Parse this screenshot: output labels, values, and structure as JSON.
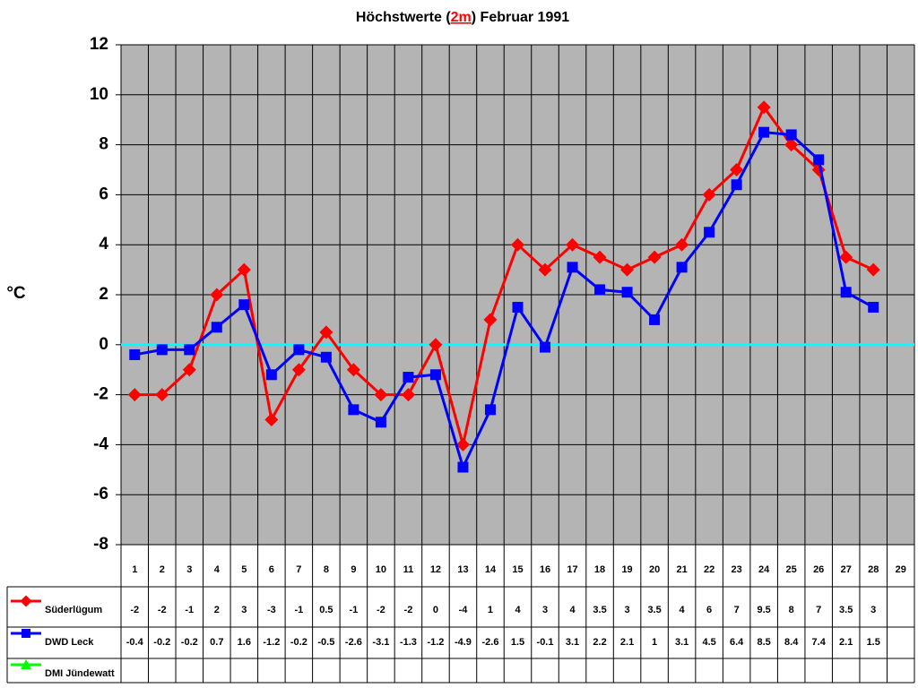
{
  "chart_data": {
    "type": "line",
    "title_parts": [
      "Höchstwerte (",
      "2m",
      ") Februar 1991"
    ],
    "y_label": "°C",
    "categories": [
      "1",
      "2",
      "3",
      "4",
      "5",
      "6",
      "7",
      "8",
      "9",
      "10",
      "11",
      "12",
      "13",
      "14",
      "15",
      "16",
      "17",
      "18",
      "19",
      "20",
      "21",
      "22",
      "23",
      "24",
      "25",
      "26",
      "27",
      "28",
      "29"
    ],
    "series": [
      {
        "name": "Süderlügum",
        "color": "#ff0000",
        "marker": "diamond",
        "values": [
          -2,
          -2,
          -1,
          2,
          3,
          -3,
          -1,
          0.5,
          -1,
          -2,
          -2,
          0,
          -4,
          1,
          4,
          3,
          4,
          3.5,
          3,
          3.5,
          4,
          6,
          7,
          9.5,
          8,
          7,
          3.5,
          3,
          null
        ]
      },
      {
        "name": "DWD Leck",
        "color": "#0000ff",
        "marker": "square",
        "values": [
          -0.4,
          -0.2,
          -0.2,
          0.7,
          1.6,
          -1.2,
          -0.2,
          -0.5,
          -2.6,
          -3.1,
          -1.3,
          -1.2,
          -4.9,
          -2.6,
          1.5,
          -0.1,
          3.1,
          2.2,
          2.1,
          1,
          3.1,
          4.5,
          6.4,
          8.5,
          8.4,
          7.4,
          2.1,
          1.5,
          null
        ]
      },
      {
        "name": "DMI Jündewatt",
        "color": "#00ff00",
        "marker": "triangle",
        "values": [
          null,
          null,
          null,
          null,
          null,
          null,
          null,
          null,
          null,
          null,
          null,
          null,
          null,
          null,
          null,
          null,
          null,
          null,
          null,
          null,
          null,
          null,
          null,
          null,
          null,
          null,
          null,
          null,
          null
        ]
      }
    ],
    "ylim": [
      -8,
      12
    ],
    "yticks": [
      -8,
      -6,
      -4,
      -2,
      0,
      2,
      4,
      6,
      8,
      10,
      12
    ],
    "grid": true,
    "zero_line_color": "#00ffff",
    "plot_background": "#b4b4b4"
  }
}
